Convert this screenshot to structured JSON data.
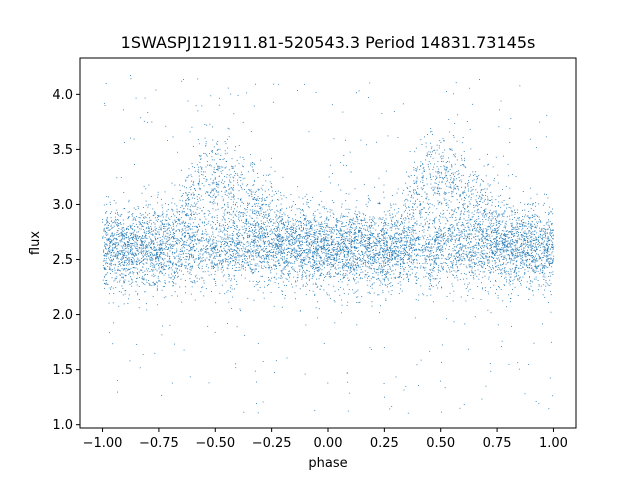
{
  "chart_data": {
    "type": "scatter",
    "title": "1SWASPJ121911.81-520543.3 Period 14831.73145s",
    "xlabel": "phase",
    "ylabel": "flux",
    "xlim": [
      -1.1,
      1.1
    ],
    "ylim": [
      0.97,
      4.33
    ],
    "xticks": [
      -1.0,
      -0.75,
      -0.5,
      -0.25,
      0.0,
      0.25,
      0.5,
      0.75,
      1.0
    ],
    "xtick_labels": [
      "−1.00",
      "−0.75",
      "−0.50",
      "−0.25",
      "0.00",
      "0.25",
      "0.50",
      "0.75",
      "1.00"
    ],
    "yticks": [
      1.0,
      1.5,
      2.0,
      2.5,
      3.0,
      3.5,
      4.0
    ],
    "ytick_labels": [
      "1.0",
      "1.5",
      "2.0",
      "2.5",
      "3.0",
      "3.5",
      "4.0"
    ],
    "grid": false,
    "marker_color": "#1f77b4",
    "series": [
      {
        "x_range": [
          -1.0,
          1.0
        ],
        "baseline_flux": 2.6,
        "baseline_scatter": 0.17,
        "hump_centers": [
          -0.55,
          0.45
        ],
        "hump_peak_flux": 3.25,
        "outlier_range": [
          1.1,
          4.2
        ],
        "point_count": 9000
      }
    ]
  }
}
